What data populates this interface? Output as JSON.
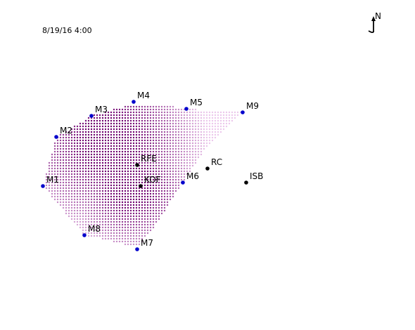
{
  "timestamp": "8/19/16 4:00",
  "north_arrow": {
    "label": "N",
    "icon": "north-arrow-icon"
  },
  "colors": {
    "monitor_marker": "#0000cc",
    "site_marker": "#000000",
    "field_high": "#6e006e",
    "field_low": "#f3d4f3"
  },
  "monitors": [
    {
      "id": "M1",
      "label": "M1"
    },
    {
      "id": "M2",
      "label": "M2"
    },
    {
      "id": "M3",
      "label": "M3"
    },
    {
      "id": "M4",
      "label": "M4"
    },
    {
      "id": "M5",
      "label": "M5"
    },
    {
      "id": "M6",
      "label": "M6"
    },
    {
      "id": "M7",
      "label": "M7"
    },
    {
      "id": "M8",
      "label": "M8"
    },
    {
      "id": "M9",
      "label": "M9"
    }
  ],
  "sites": [
    {
      "id": "RFE",
      "label": "RFE"
    },
    {
      "id": "KOF",
      "label": "KOF"
    },
    {
      "id": "RC",
      "label": "RC"
    },
    {
      "id": "ISB",
      "label": "ISB"
    }
  ]
}
